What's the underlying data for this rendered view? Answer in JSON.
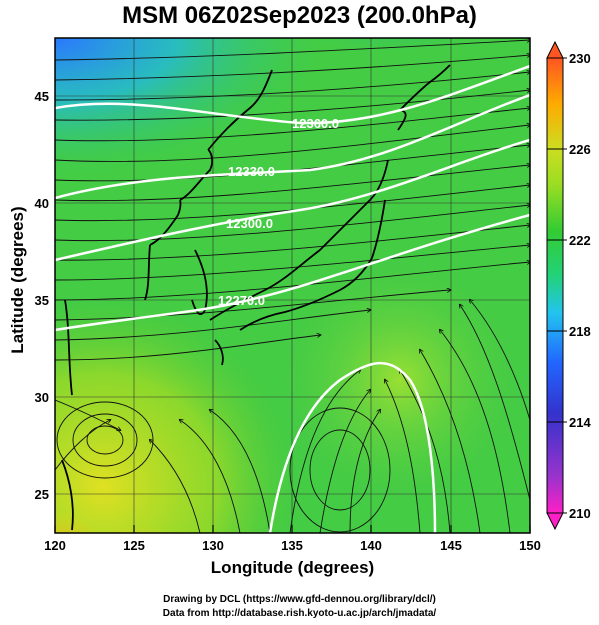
{
  "title": "MSM 06Z02Sep2023 (200.0hPa)",
  "x_axis": {
    "label": "Longitude (degrees)",
    "ticks": [
      "120",
      "125",
      "130",
      "135",
      "140",
      "145",
      "150"
    ]
  },
  "y_axis": {
    "label": "Latitude  (degrees)",
    "ticks": [
      "25",
      "30",
      "35",
      "40",
      "45"
    ]
  },
  "colorbar": {
    "ticks": [
      "210",
      "214",
      "218",
      "222",
      "226",
      "230"
    ],
    "colors": [
      "#ff1fc8",
      "#9933cc",
      "#3333cc",
      "#2266ff",
      "#22c4ee",
      "#22d27a",
      "#33cc33",
      "#99dd22",
      "#ccdd22",
      "#ffaa00",
      "#ff5522"
    ]
  },
  "contours": [
    {
      "label": "12360.0"
    },
    {
      "label": "12330.0"
    },
    {
      "label": "12300.0"
    },
    {
      "label": "12270.0"
    }
  ],
  "credits": {
    "line1": "Drawing by DCL (https://www.gfd-dennou.org/library/dcl/)",
    "line2": "Data from http://database.rish.kyoto-u.ac.jp/arch/jmadata/"
  }
}
